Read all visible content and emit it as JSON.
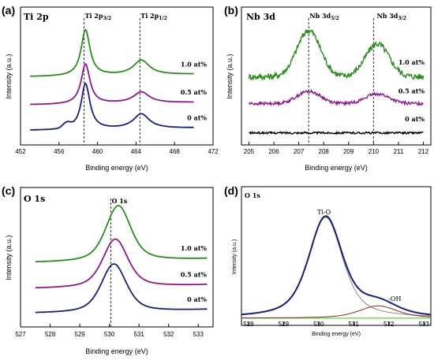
{
  "colors": {
    "green": "#2e8b22",
    "purple": "#8b1a8b",
    "navy": "#1c1f7a",
    "black": "#000000",
    "darkred": "#8b2a2a",
    "lightgreen": "#55dd33",
    "fitgrey": "#8a8a8a"
  },
  "chart_data": [
    {
      "id": "a",
      "type": "line",
      "panel_label": "(a)",
      "title_main": "Ti 2p",
      "xlabel": "Binding energy (eV)",
      "ylabel": "Intensity (a.u.)",
      "xlim": [
        452,
        472
      ],
      "xticks": [
        "452",
        "456",
        "460",
        "464",
        "468",
        "472"
      ],
      "xtick_values": [
        452,
        456,
        460,
        464,
        468,
        472
      ],
      "peak_labels": [
        {
          "main": "Ti 2p",
          "sub": "3/2",
          "x": 458.6
        },
        {
          "main": "Ti 2p",
          "sub": "1/2",
          "x": 464.4
        }
      ],
      "dashed_lines": [
        458.6,
        464.4
      ],
      "x_range_data": [
        453,
        470
      ],
      "peaks": [
        {
          "center": 458.75,
          "width": 0.55,
          "shape": "lorentz"
        },
        {
          "center": 464.55,
          "width": 1.0,
          "shape": "lorentz"
        }
      ],
      "series": [
        {
          "name": "1.0 at%",
          "color": "green",
          "baseline": 0.52,
          "amps": [
            0.38,
            0.12
          ],
          "shoulder": 0
        },
        {
          "name": "0.5 at%",
          "color": "purple",
          "baseline": 0.29,
          "amps": [
            0.33,
            0.09
          ],
          "shoulder": 0
        },
        {
          "name": "0 at%",
          "color": "navy",
          "baseline": 0.08,
          "amps": [
            0.38,
            0.12
          ],
          "shoulder": 0.04
        }
      ]
    },
    {
      "id": "b",
      "type": "line",
      "panel_label": "(b)",
      "title_main": "Nb 3d",
      "xlabel": "Binding energy (eV)",
      "ylabel": "Intensity (a.u.)",
      "xlim": [
        204.7,
        212.3
      ],
      "xticks": [
        "205",
        "206",
        "207",
        "208",
        "209",
        "210",
        "211",
        "212"
      ],
      "xtick_values": [
        205,
        206,
        207,
        208,
        209,
        210,
        211,
        212
      ],
      "peak_labels": [
        {
          "main": "Nb 3d",
          "sub": "5/2",
          "x": 207.4
        },
        {
          "main": "Nb 3d",
          "sub": "3/2",
          "x": 210.1
        }
      ],
      "dashed_lines": [
        207.4,
        210.0
      ],
      "x_range_data": [
        205,
        212
      ],
      "peaks": [
        {
          "center": 207.4,
          "width": 0.7,
          "shape": "gauss"
        },
        {
          "center": 210.15,
          "width": 0.7,
          "shape": "gauss"
        }
      ],
      "series": [
        {
          "name": "1.0 at%",
          "color": "green",
          "baseline": 0.52,
          "amps": [
            0.38,
            0.27
          ],
          "noise": 0.025
        },
        {
          "name": "0.5 at%",
          "color": "purple",
          "baseline": 0.3,
          "amps": [
            0.1,
            0.08
          ],
          "noise": 0.012
        },
        {
          "name": "0 at%",
          "color": "black",
          "baseline": 0.06,
          "amps": [
            0,
            0
          ],
          "noise": 0.008
        }
      ]
    },
    {
      "id": "c",
      "type": "line",
      "panel_label": "(c)",
      "title_main": "O 1s",
      "xlabel": "Binding energy (eV)",
      "ylabel": "Intensity (a.u.)",
      "xlim": [
        527,
        533.5
      ],
      "xticks": [
        "527",
        "528",
        "529",
        "530",
        "531",
        "532",
        "533"
      ],
      "xtick_values": [
        527,
        528,
        529,
        530,
        531,
        532,
        533
      ],
      "peak_labels": [
        {
          "main": "O 1s",
          "sub": "",
          "x": 530.05
        }
      ],
      "dashed_lines": [
        530.05
      ],
      "x_range_data": [
        527.5,
        533.3
      ],
      "peaks": [
        {
          "center": 530.2,
          "width": 0.55,
          "shape": "voigt"
        }
      ],
      "series": [
        {
          "name": "1.0 at%",
          "color": "green",
          "baseline": 0.48,
          "amps": [
            0.46
          ],
          "shift": 0.1
        },
        {
          "name": "0.5 at%",
          "color": "purple",
          "baseline": 0.27,
          "amps": [
            0.4
          ],
          "shift": 0.0
        },
        {
          "name": "0 at%",
          "color": "navy",
          "baseline": 0.07,
          "amps": [
            0.4
          ],
          "shift": -0.05
        }
      ]
    },
    {
      "id": "d",
      "type": "line",
      "panel_label": "(d)",
      "title_main": "O 1s",
      "xlabel": "Binding energy (eV)",
      "ylabel": "Intensity (a.u.)",
      "xlim": [
        527.8,
        533.2
      ],
      "xticks": [
        "528",
        "529",
        "530",
        "531",
        "532",
        "533"
      ],
      "xtick_values": [
        528,
        529,
        530,
        531,
        532,
        533
      ],
      "annotations": [
        {
          "text": "Ti-O",
          "x": 530.2
        },
        {
          "text": "-OH",
          "x": 531.9
        }
      ],
      "x_range_data": [
        527.8,
        533.2
      ],
      "components": [
        {
          "name": "Ti-O",
          "center": 530.2,
          "width": 0.62,
          "amp": 0.82,
          "color": "fitgrey"
        },
        {
          "name": "-OH",
          "center": 531.7,
          "width": 0.7,
          "amp": 0.1,
          "color": "darkred"
        }
      ],
      "background": {
        "level": 0.02,
        "color": "lightgreen"
      },
      "envelope_color": "navy"
    }
  ]
}
